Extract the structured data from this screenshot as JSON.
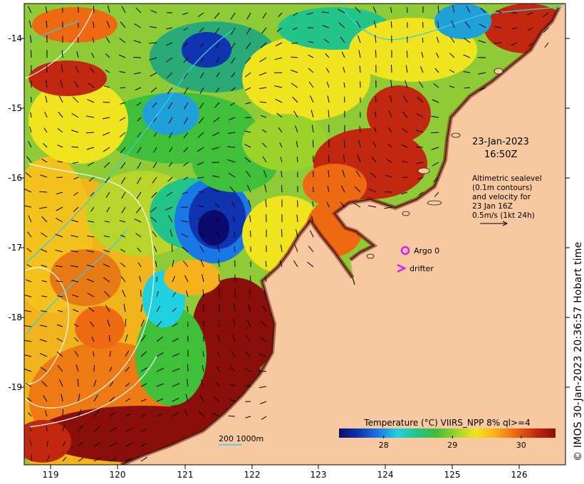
{
  "map": {
    "lon_range": [
      118.6,
      126.7
    ],
    "lat_range": [
      -20.1,
      -13.5
    ],
    "lon_ticks": [
      "119",
      "120",
      "121",
      "122",
      "123",
      "124",
      "125",
      "126"
    ],
    "lat_ticks": [
      "-14",
      "-15",
      "-16",
      "-17",
      "-18",
      "-19"
    ]
  },
  "annotation": {
    "date": "23-Jan-2023",
    "time": "16:50Z",
    "lines": [
      "Altimetric sealevel",
      "(0.1m contours)",
      "and velocity for",
      "23 Jan 16Z",
      "0.5m/s (1kt 24h)"
    ]
  },
  "legend": {
    "argo_label": "Argo 0",
    "drifter_label": "drifter",
    "scale_label": "200  1000m",
    "colorbar_title": "Temperature (°C) VIIRS_NPP 8% ql>=4",
    "colorbar_ticks": [
      "28",
      "29",
      "30"
    ],
    "colorbar_range": [
      27.35,
      30.5
    ]
  },
  "credit": "© IMOS 30-Jan-2023 20:36:57 Hobart time",
  "colors": {
    "land": "#f8c9a0",
    "coast": "#1a1a1a",
    "contour": "#ffffff",
    "depth_contour": "#3ec9e0",
    "argo": "#e020e0",
    "drifter": "#e020e0",
    "colormap": [
      "#0b0b6e",
      "#1034b0",
      "#1a78e6",
      "#1fd0e0",
      "#22c48a",
      "#3fbf3a",
      "#9bd32a",
      "#f0e41e",
      "#f6b21a",
      "#ee6a12",
      "#c2280f",
      "#8a0f0a"
    ]
  }
}
